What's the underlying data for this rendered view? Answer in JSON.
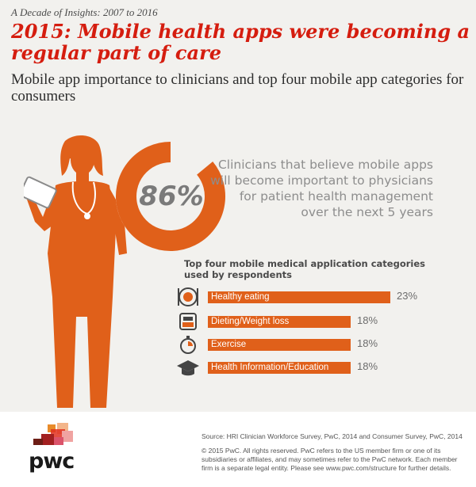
{
  "header": {
    "kicker": "A Decade of Insights: 2007 to 2016",
    "title": "2015: Mobile health apps were becoming a regular part of care",
    "subtitle": "Mobile app importance to clinicians and top four mobile app categories for consumers"
  },
  "stat": {
    "value": "86%",
    "fraction": 0.86,
    "text": "Clinicians that believe mobile apps will become important to physicians for patient health management over the next 5 years"
  },
  "chart_data": {
    "type": "bar",
    "orientation": "horizontal",
    "title": "Top four mobile medical application categories used by respondents",
    "categories": [
      "Healthy eating",
      "Dieting/Weight loss",
      "Exercise",
      "Health Information/Education"
    ],
    "values": [
      23,
      18,
      18,
      18
    ],
    "value_labels": [
      "23%",
      "18%",
      "18%",
      "18%"
    ],
    "icons": [
      "plate-icon",
      "scale-icon",
      "stopwatch-icon",
      "graduation-cap-icon"
    ],
    "unit": "%",
    "bar_color": "#e0601a"
  },
  "footer": {
    "logo": "pwc",
    "source": "Source: HRI Clinician Workforce Survey, PwC, 2014 and Consumer Survey, PwC, 2014",
    "copyright": "© 2015 PwC. All rights reserved. PwC refers to the US member firm or one of its subsidiaries or affiliates, and may sometimes refer to the PwC network. Each member firm is a separate legal entity. Please see www.pwc.com/structure for further details."
  },
  "colors": {
    "accent_red": "#d51d0f",
    "orange": "#e0601a",
    "background": "#f2f1ee"
  }
}
